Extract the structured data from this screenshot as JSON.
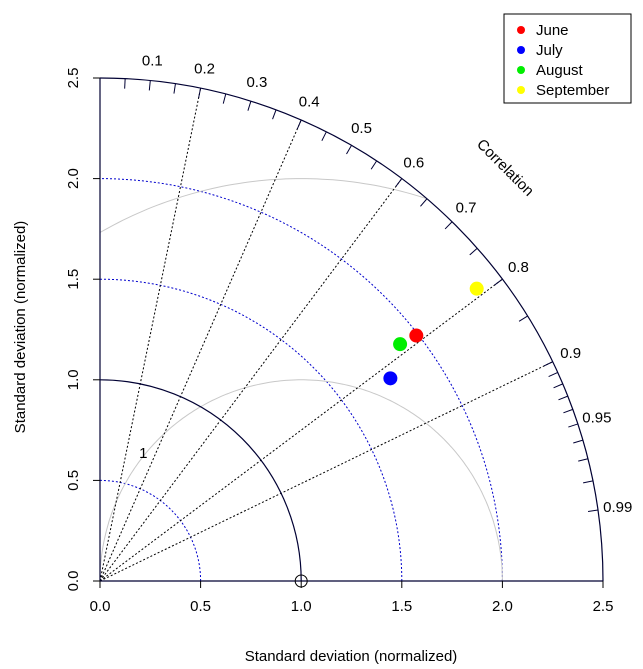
{
  "chart_data": {
    "type": "scatter",
    "subtype": "taylor-diagram",
    "xlabel": "Standard deviation (normalized)",
    "ylabel": "Standard deviation (normalized)",
    "arc_label": "Correlation",
    "sd_max": 2.5,
    "sd_ticks": [
      "0.0",
      "0.5",
      "1.0",
      "1.5",
      "2.0",
      "2.5"
    ],
    "sd_tick_values": [
      0,
      0.5,
      1.0,
      1.5,
      2.0,
      2.5
    ],
    "sd_grid_arcs": [
      0.5,
      1.5,
      2.0
    ],
    "reference_sd": 1.0,
    "rmsd_arcs": [
      {
        "value": 1,
        "label": "1"
      },
      {
        "value": 2,
        "label": "2"
      }
    ],
    "correlation_lines": [
      0.2,
      0.4,
      0.6,
      0.8,
      0.9
    ],
    "correlation_labels": [
      {
        "value": 0.1,
        "label": "0.1"
      },
      {
        "value": 0.2,
        "label": "0.2"
      },
      {
        "value": 0.3,
        "label": "0.3"
      },
      {
        "value": 0.4,
        "label": "0.4"
      },
      {
        "value": 0.5,
        "label": "0.5"
      },
      {
        "value": 0.6,
        "label": "0.6"
      },
      {
        "value": 0.7,
        "label": "0.7"
      },
      {
        "value": 0.8,
        "label": "0.8"
      },
      {
        "value": 0.9,
        "label": "0.9"
      },
      {
        "value": 0.95,
        "label": "0.95"
      },
      {
        "value": 0.99,
        "label": "0.99"
      }
    ],
    "minor_correlation_ticks": [
      0.05,
      0.1,
      0.15,
      0.2,
      0.25,
      0.3,
      0.35,
      0.4,
      0.45,
      0.5,
      0.55,
      0.6,
      0.65,
      0.7,
      0.75,
      0.8,
      0.85,
      0.9,
      0.91,
      0.92,
      0.93,
      0.94,
      0.95,
      0.96,
      0.97,
      0.98,
      0.99
    ],
    "series": [
      {
        "name": "June",
        "color": "#ff0000",
        "sd": 1.99,
        "correlation": 0.79
      },
      {
        "name": "July",
        "color": "#0000ff",
        "sd": 1.76,
        "correlation": 0.82
      },
      {
        "name": "August",
        "color": "#00ee00",
        "sd": 1.9,
        "correlation": 0.785
      },
      {
        "name": "September",
        "color": "#ffff00",
        "sd": 2.37,
        "correlation": 0.79
      }
    ],
    "legend_position": "top-right",
    "colors": {
      "frame": "#000033",
      "sd_grid": "#0000cc",
      "rmsd_arc": "#c8c8c8",
      "corr_line": "#000000"
    }
  }
}
